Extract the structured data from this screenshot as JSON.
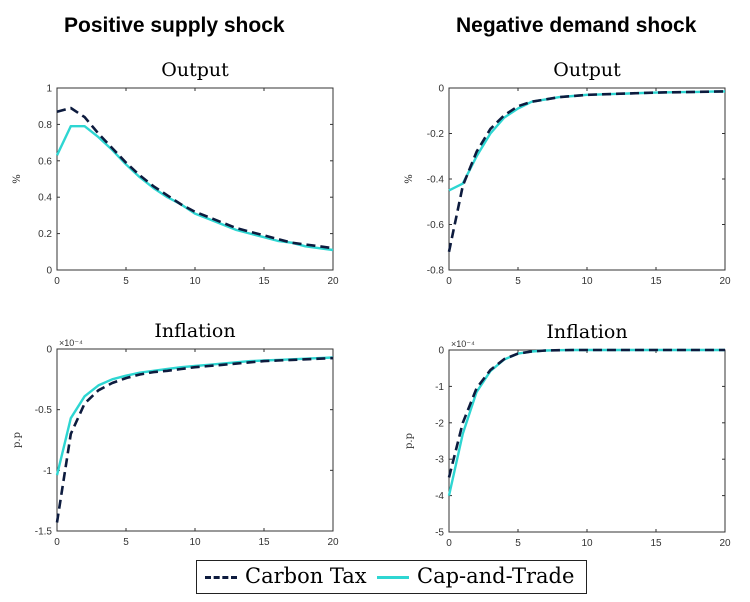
{
  "headings": {
    "left": "Positive supply shock",
    "right": "Negative demand shock"
  },
  "colors": {
    "carbon_tax": "#0d1b3e",
    "cap_and_trade": "#2ed6d2",
    "axis": "#333333"
  },
  "legend": {
    "items": [
      {
        "label": "Carbon Tax",
        "style": "dashed",
        "color_key": "carbon_tax"
      },
      {
        "label": "Cap-and-Trade",
        "style": "solid",
        "color_key": "cap_and_trade"
      }
    ]
  },
  "chart_data": [
    {
      "type": "line",
      "title": "Output",
      "ylabel": "%",
      "xlim": [
        0,
        20
      ],
      "ylim": [
        0,
        1
      ],
      "xticks": [
        0,
        5,
        10,
        15,
        20
      ],
      "yticks": [
        0,
        0.2,
        0.4,
        0.6,
        0.8,
        1
      ],
      "ytick_labels": [
        "0",
        "0.2",
        "0.4",
        "0.6",
        "0.8",
        "1"
      ],
      "exponent_label": "",
      "series": [
        {
          "name": "Carbon Tax",
          "style": "dashed",
          "x": [
            0,
            1,
            2,
            3,
            4,
            5,
            6,
            7,
            8,
            9,
            10,
            11,
            12,
            13,
            14,
            15,
            16,
            17,
            18,
            19,
            20
          ],
          "y": [
            0.87,
            0.89,
            0.84,
            0.75,
            0.67,
            0.59,
            0.52,
            0.46,
            0.41,
            0.36,
            0.32,
            0.29,
            0.26,
            0.23,
            0.21,
            0.19,
            0.17,
            0.15,
            0.14,
            0.13,
            0.12
          ]
        },
        {
          "name": "Cap-and-Trade",
          "style": "solid",
          "x": [
            0,
            1,
            2,
            3,
            4,
            5,
            6,
            7,
            8,
            9,
            10,
            11,
            12,
            13,
            14,
            15,
            16,
            17,
            18,
            19,
            20
          ],
          "y": [
            0.63,
            0.79,
            0.79,
            0.73,
            0.66,
            0.58,
            0.51,
            0.45,
            0.4,
            0.36,
            0.31,
            0.28,
            0.25,
            0.22,
            0.2,
            0.18,
            0.16,
            0.15,
            0.13,
            0.12,
            0.11
          ]
        }
      ]
    },
    {
      "type": "line",
      "title": "Output",
      "ylabel": "%",
      "xlim": [
        0,
        20
      ],
      "ylim": [
        -0.8,
        0
      ],
      "xticks": [
        0,
        5,
        10,
        15,
        20
      ],
      "yticks": [
        -0.8,
        -0.6,
        -0.4,
        -0.2,
        0
      ],
      "ytick_labels": [
        "-0.8",
        "-0.6",
        "-0.4",
        "-0.2",
        "0"
      ],
      "exponent_label": "",
      "series": [
        {
          "name": "Carbon Tax",
          "style": "dashed",
          "x": [
            0,
            1,
            2,
            3,
            4,
            5,
            6,
            7,
            8,
            9,
            10,
            11,
            12,
            13,
            14,
            15,
            16,
            17,
            18,
            19,
            20
          ],
          "y": [
            -0.72,
            -0.43,
            -0.28,
            -0.18,
            -0.12,
            -0.08,
            -0.06,
            -0.05,
            -0.04,
            -0.035,
            -0.03,
            -0.028,
            -0.026,
            -0.024,
            -0.022,
            -0.02,
            -0.019,
            -0.018,
            -0.017,
            -0.016,
            -0.015
          ]
        },
        {
          "name": "Cap-and-Trade",
          "style": "solid",
          "x": [
            0,
            1,
            2,
            3,
            4,
            5,
            6,
            7,
            8,
            9,
            10,
            11,
            12,
            13,
            14,
            15,
            16,
            17,
            18,
            19,
            20
          ],
          "y": [
            -0.45,
            -0.42,
            -0.3,
            -0.2,
            -0.13,
            -0.09,
            -0.06,
            -0.05,
            -0.04,
            -0.035,
            -0.03,
            -0.028,
            -0.026,
            -0.024,
            -0.022,
            -0.02,
            -0.019,
            -0.018,
            -0.017,
            -0.016,
            -0.015
          ]
        }
      ]
    },
    {
      "type": "line",
      "title": "Inflation",
      "ylabel": "p.p",
      "xlim": [
        0,
        20
      ],
      "ylim": [
        -1.5,
        0
      ],
      "xticks": [
        0,
        5,
        10,
        15,
        20
      ],
      "yticks": [
        -1.5,
        -1,
        -0.5,
        0
      ],
      "ytick_labels": [
        "-1.5",
        "-1",
        "-0.5",
        "0"
      ],
      "exponent_label": "×10⁻⁴",
      "series": [
        {
          "name": "Carbon Tax",
          "style": "dashed",
          "x": [
            0,
            1,
            2,
            3,
            4,
            5,
            6,
            7,
            8,
            9,
            10,
            11,
            12,
            13,
            14,
            15,
            16,
            17,
            18,
            19,
            20
          ],
          "y": [
            -1.43,
            -0.7,
            -0.45,
            -0.34,
            -0.28,
            -0.24,
            -0.21,
            -0.19,
            -0.18,
            -0.165,
            -0.15,
            -0.14,
            -0.13,
            -0.12,
            -0.11,
            -0.1,
            -0.095,
            -0.09,
            -0.085,
            -0.08,
            -0.075
          ]
        },
        {
          "name": "Cap-and-Trade",
          "style": "solid",
          "x": [
            0,
            1,
            2,
            3,
            4,
            5,
            6,
            7,
            8,
            9,
            10,
            11,
            12,
            13,
            14,
            15,
            16,
            17,
            18,
            19,
            20
          ],
          "y": [
            -1.04,
            -0.57,
            -0.39,
            -0.3,
            -0.25,
            -0.22,
            -0.195,
            -0.18,
            -0.165,
            -0.15,
            -0.14,
            -0.13,
            -0.12,
            -0.11,
            -0.1,
            -0.095,
            -0.09,
            -0.085,
            -0.08,
            -0.075,
            -0.07
          ]
        }
      ]
    },
    {
      "type": "line",
      "title": "Inflation",
      "ylabel": "p.p",
      "xlim": [
        0,
        20
      ],
      "ylim": [
        -5,
        0
      ],
      "xticks": [
        0,
        5,
        10,
        15,
        20
      ],
      "yticks": [
        -5,
        -4,
        -3,
        -2,
        -1,
        0
      ],
      "ytick_labels": [
        "-5",
        "-4",
        "-3",
        "-2",
        "-1",
        "0"
      ],
      "exponent_label": "×10⁻⁴",
      "series": [
        {
          "name": "Carbon Tax",
          "style": "dashed",
          "x": [
            0,
            1,
            2,
            3,
            4,
            5,
            6,
            7,
            8,
            9,
            10,
            11,
            12,
            13,
            14,
            15,
            16,
            17,
            18,
            19,
            20
          ],
          "y": [
            -3.5,
            -2.0,
            -1.05,
            -0.55,
            -0.25,
            -0.1,
            -0.04,
            -0.015,
            -0.005,
            0,
            0,
            0,
            0,
            0,
            0,
            0,
            0,
            0,
            0,
            0,
            0
          ]
        },
        {
          "name": "Cap-and-Trade",
          "style": "solid",
          "x": [
            0,
            1,
            2,
            3,
            4,
            5,
            6,
            7,
            8,
            9,
            10,
            11,
            12,
            13,
            14,
            15,
            16,
            17,
            18,
            19,
            20
          ],
          "y": [
            -4.0,
            -2.3,
            -1.15,
            -0.58,
            -0.26,
            -0.1,
            -0.04,
            -0.015,
            -0.005,
            0,
            0,
            0,
            0,
            0,
            0,
            0,
            0,
            0,
            0,
            0,
            0
          ]
        }
      ]
    }
  ]
}
